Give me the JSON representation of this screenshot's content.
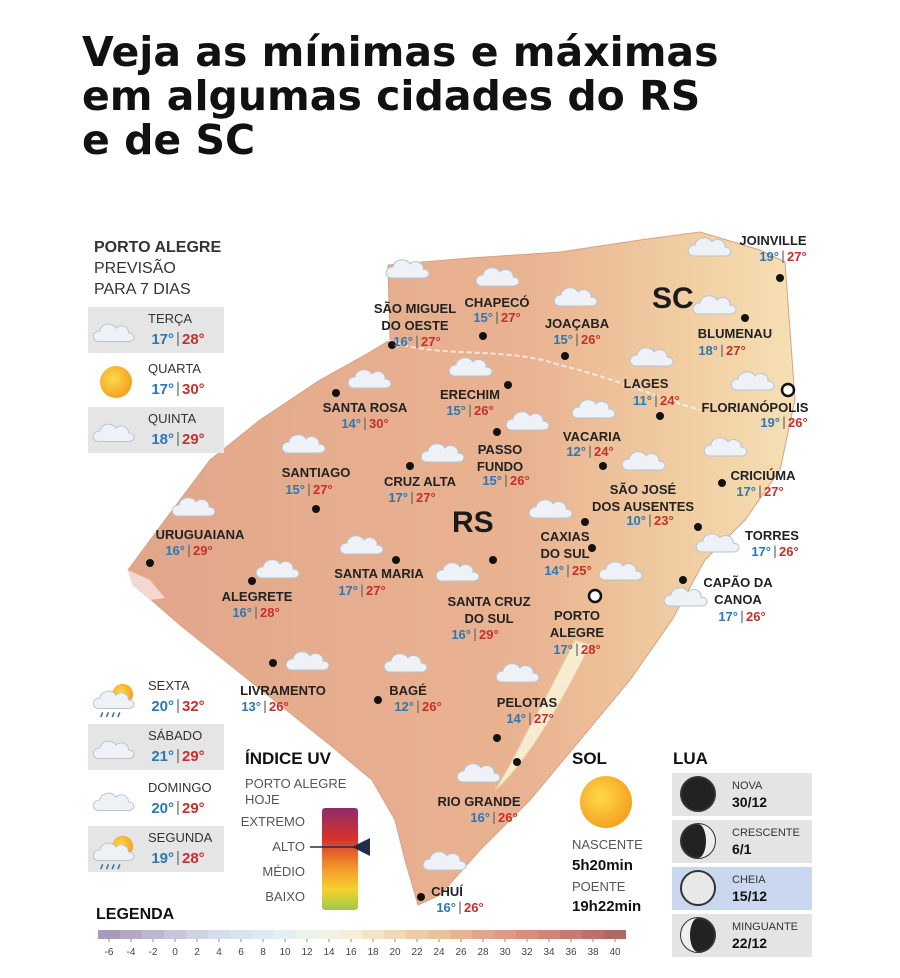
{
  "header": {
    "title": [
      "Veja as mínimas e máximas",
      "em algumas cidades do RS",
      "e de SC"
    ]
  },
  "map": {
    "regions": [
      "SC",
      "RS"
    ],
    "cities": [
      {
        "name": [
          "SÃO MIGUEL",
          "DO OESTE"
        ],
        "min": "16°",
        "max": "27°"
      },
      {
        "name": [
          "CHAPECÓ"
        ],
        "min": "15°",
        "max": "27°"
      },
      {
        "name": [
          "JOAÇABA"
        ],
        "min": "15°",
        "max": "26°"
      },
      {
        "name": [
          "JOINVILLE"
        ],
        "min": "19°",
        "max": "27°"
      },
      {
        "name": [
          "BLUMENAU"
        ],
        "min": "18°",
        "max": "27°"
      },
      {
        "name": [
          "LAGES"
        ],
        "min": "11°",
        "max": "24°"
      },
      {
        "name": [
          "FLORIANÓPOLIS"
        ],
        "min": "19°",
        "max": "26°"
      },
      {
        "name": [
          "ERECHIM"
        ],
        "min": "15°",
        "max": "26°"
      },
      {
        "name": [
          "SANTA ROSA"
        ],
        "min": "14°",
        "max": "30°"
      },
      {
        "name": [
          "PASSO",
          "FUNDO"
        ],
        "min": "15°",
        "max": "26°"
      },
      {
        "name": [
          "VACARIA"
        ],
        "min": "12°",
        "max": "24°"
      },
      {
        "name": [
          "CRICIÚMA"
        ],
        "min": "17°",
        "max": "27°"
      },
      {
        "name": [
          "SANTIAGO"
        ],
        "min": "15°",
        "max": "27°"
      },
      {
        "name": [
          "CRUZ ALTA"
        ],
        "min": "17°",
        "max": "27°"
      },
      {
        "name": [
          "SÃO JOSÉ",
          "DOS AUSENTES"
        ],
        "min": "10°",
        "max": "23°"
      },
      {
        "name": [
          "URUGUAIANA"
        ],
        "min": "16°",
        "max": "29°"
      },
      {
        "name": [
          "TORRES"
        ],
        "min": "17°",
        "max": "26°"
      },
      {
        "name": [
          "CAXIAS",
          "DO SUL"
        ],
        "min": "14°",
        "max": "25°"
      },
      {
        "name": [
          "SANTA MARIA"
        ],
        "min": "17°",
        "max": "27°"
      },
      {
        "name": [
          "ALEGRETE"
        ],
        "min": "16°",
        "max": "28°"
      },
      {
        "name": [
          "SANTA CRUZ",
          "DO SUL"
        ],
        "min": "16°",
        "max": "29°"
      },
      {
        "name": [
          "CAPÃO DA",
          "CANOA"
        ],
        "min": "17°",
        "max": "26°"
      },
      {
        "name": [
          "PORTO",
          "ALEGRE"
        ],
        "min": "17°",
        "max": "28°"
      },
      {
        "name": [
          "LIVRAMENTO"
        ],
        "min": "13°",
        "max": "26°"
      },
      {
        "name": [
          "BAGÉ"
        ],
        "min": "12°",
        "max": "26°"
      },
      {
        "name": [
          "PELOTAS"
        ],
        "min": "14°",
        "max": "27°"
      },
      {
        "name": [
          "RIO GRANDE"
        ],
        "min": "16°",
        "max": "26°"
      },
      {
        "name": [
          "CHUÍ"
        ],
        "min": "16°",
        "max": "26°"
      }
    ]
  },
  "forecast": {
    "header": [
      "PORTO ALEGRE",
      "PREVISÃO",
      "PARA 7 DIAS"
    ],
    "days": [
      {
        "name": "TERÇA",
        "min": "17°",
        "max": "28°"
      },
      {
        "name": "QUARTA",
        "min": "17°",
        "max": "30°"
      },
      {
        "name": "QUINTA",
        "min": "18°",
        "max": "29°"
      },
      {
        "name": "SEXTA",
        "min": "20°",
        "max": "32°"
      },
      {
        "name": "SÁBADO",
        "min": "21°",
        "max": "29°"
      },
      {
        "name": "DOMINGO",
        "min": "20°",
        "max": "29°"
      },
      {
        "name": "SEGUNDA",
        "min": "19°",
        "max": "28°"
      }
    ]
  },
  "uv": {
    "title": "ÍNDICE UV",
    "subtitle": [
      "PORTO ALEGRE",
      "HOJE"
    ],
    "levels": [
      "EXTREMO",
      "ALTO",
      "MÉDIO",
      "BAIXO"
    ]
  },
  "sun": {
    "title": "SOL",
    "sunrise_label": "NASCENTE",
    "sunrise": "5h20min",
    "sunset_label": "POENTE",
    "sunset": "19h22min"
  },
  "moon": {
    "title": "LUA",
    "phases": [
      {
        "name": "NOVA",
        "date": "30/12"
      },
      {
        "name": "CRESCENTE",
        "date": "6/1"
      },
      {
        "name": "CHEIA",
        "date": "15/12"
      },
      {
        "name": "MINGUANTE",
        "date": "22/12"
      }
    ]
  },
  "legend": {
    "title": "LEGENDA",
    "scale": [
      -6,
      -4,
      -2,
      0,
      2,
      4,
      6,
      8,
      10,
      12,
      14,
      16,
      18,
      20,
      22,
      24,
      26,
      28,
      30,
      32,
      34,
      36,
      38,
      40
    ]
  }
}
